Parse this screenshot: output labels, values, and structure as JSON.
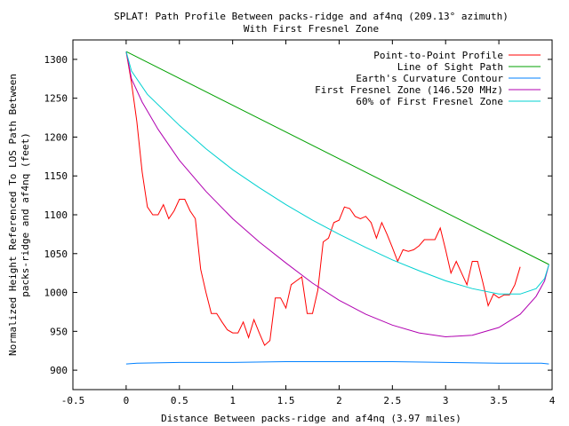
{
  "chart_data": {
    "type": "line",
    "title_line1": "SPLAT! Path Profile Between packs-ridge and af4nq (209.13° azimuth)",
    "title_line2": "With First Fresnel Zone",
    "xlabel": "Distance Between packs-ridge and af4nq (3.97 miles)",
    "ylabel_line1": "Normalized Height Referenced To LOS Path Between",
    "ylabel_line2": "packs-ridge and af4nq (feet)",
    "xlim": [
      -0.5,
      4
    ],
    "ylim": [
      875,
      1325
    ],
    "x_ticks": [
      "-0.5",
      "0",
      "0.5",
      "1",
      "1.5",
      "2",
      "2.5",
      "3",
      "3.5",
      "4"
    ],
    "y_ticks": [
      "900",
      "950",
      "1000",
      "1050",
      "1100",
      "1150",
      "1200",
      "1250",
      "1300"
    ],
    "legend_position": "top-right",
    "series": [
      {
        "name": "Point-to-Point Profile",
        "color": "#ff0000",
        "points": [
          [
            0,
            1310
          ],
          [
            0.05,
            1270
          ],
          [
            0.1,
            1220
          ],
          [
            0.15,
            1155
          ],
          [
            0.2,
            1110
          ],
          [
            0.25,
            1100
          ],
          [
            0.3,
            1100
          ],
          [
            0.35,
            1113
          ],
          [
            0.4,
            1095
          ],
          [
            0.45,
            1105
          ],
          [
            0.5,
            1120
          ],
          [
            0.55,
            1120
          ],
          [
            0.6,
            1105
          ],
          [
            0.65,
            1095
          ],
          [
            0.7,
            1030
          ],
          [
            0.75,
            1000
          ],
          [
            0.8,
            973
          ],
          [
            0.85,
            973
          ],
          [
            0.9,
            962
          ],
          [
            0.95,
            952
          ],
          [
            1.0,
            948
          ],
          [
            1.05,
            948
          ],
          [
            1.1,
            962
          ],
          [
            1.15,
            942
          ],
          [
            1.2,
            965
          ],
          [
            1.25,
            948
          ],
          [
            1.3,
            932
          ],
          [
            1.35,
            938
          ],
          [
            1.4,
            993
          ],
          [
            1.45,
            993
          ],
          [
            1.5,
            980
          ],
          [
            1.55,
            1010
          ],
          [
            1.6,
            1015
          ],
          [
            1.65,
            1020
          ],
          [
            1.7,
            973
          ],
          [
            1.75,
            973
          ],
          [
            1.8,
            1003
          ],
          [
            1.85,
            1065
          ],
          [
            1.9,
            1070
          ],
          [
            1.95,
            1090
          ],
          [
            2.0,
            1093
          ],
          [
            2.05,
            1110
          ],
          [
            2.1,
            1108
          ],
          [
            2.15,
            1098
          ],
          [
            2.2,
            1095
          ],
          [
            2.25,
            1098
          ],
          [
            2.3,
            1090
          ],
          [
            2.35,
            1070
          ],
          [
            2.4,
            1090
          ],
          [
            2.45,
            1075
          ],
          [
            2.5,
            1058
          ],
          [
            2.55,
            1040
          ],
          [
            2.6,
            1055
          ],
          [
            2.65,
            1053
          ],
          [
            2.7,
            1055
          ],
          [
            2.75,
            1060
          ],
          [
            2.8,
            1068
          ],
          [
            2.85,
            1068
          ],
          [
            2.9,
            1068
          ],
          [
            2.95,
            1083
          ],
          [
            3.0,
            1055
          ],
          [
            3.05,
            1025
          ],
          [
            3.1,
            1040
          ],
          [
            3.15,
            1025
          ],
          [
            3.2,
            1010
          ],
          [
            3.25,
            1040
          ],
          [
            3.3,
            1040
          ],
          [
            3.35,
            1013
          ],
          [
            3.4,
            983
          ],
          [
            3.45,
            998
          ],
          [
            3.5,
            993
          ],
          [
            3.55,
            997
          ],
          [
            3.6,
            997
          ],
          [
            3.65,
            1010
          ],
          [
            3.7,
            1033
          ]
        ]
      },
      {
        "name": "Line of Sight Path",
        "color": "#00a000",
        "points": [
          [
            0,
            1310
          ],
          [
            3.97,
            1036
          ]
        ]
      },
      {
        "name": "Earth's Curvature Contour",
        "color": "#0080ff",
        "points": [
          [
            0,
            908
          ],
          [
            0.1,
            909
          ],
          [
            0.5,
            910
          ],
          [
            1.0,
            910
          ],
          [
            1.5,
            911
          ],
          [
            2.0,
            911
          ],
          [
            2.5,
            911
          ],
          [
            3.0,
            910
          ],
          [
            3.5,
            909
          ],
          [
            3.9,
            909
          ],
          [
            3.97,
            908
          ]
        ]
      },
      {
        "name": "First Fresnel Zone (146.520 MHz)",
        "color": "#b000b0",
        "points": [
          [
            0,
            1310
          ],
          [
            0.05,
            1275
          ],
          [
            0.15,
            1245
          ],
          [
            0.3,
            1210
          ],
          [
            0.5,
            1170
          ],
          [
            0.75,
            1130
          ],
          [
            1.0,
            1095
          ],
          [
            1.25,
            1065
          ],
          [
            1.5,
            1038
          ],
          [
            1.75,
            1012
          ],
          [
            2.0,
            990
          ],
          [
            2.25,
            972
          ],
          [
            2.5,
            958
          ],
          [
            2.75,
            948
          ],
          [
            3.0,
            943
          ],
          [
            3.25,
            945
          ],
          [
            3.5,
            955
          ],
          [
            3.7,
            972
          ],
          [
            3.85,
            995
          ],
          [
            3.93,
            1015
          ],
          [
            3.97,
            1036
          ]
        ]
      },
      {
        "name": "60% of First Fresnel Zone",
        "color": "#00d0d0",
        "points": [
          [
            0,
            1310
          ],
          [
            0.05,
            1285
          ],
          [
            0.2,
            1255
          ],
          [
            0.5,
            1215
          ],
          [
            0.75,
            1185
          ],
          [
            1.0,
            1158
          ],
          [
            1.25,
            1135
          ],
          [
            1.5,
            1113
          ],
          [
            1.75,
            1093
          ],
          [
            2.0,
            1075
          ],
          [
            2.25,
            1058
          ],
          [
            2.5,
            1042
          ],
          [
            2.75,
            1028
          ],
          [
            3.0,
            1015
          ],
          [
            3.25,
            1005
          ],
          [
            3.5,
            998
          ],
          [
            3.7,
            998
          ],
          [
            3.85,
            1005
          ],
          [
            3.93,
            1018
          ],
          [
            3.97,
            1036
          ]
        ]
      }
    ]
  }
}
